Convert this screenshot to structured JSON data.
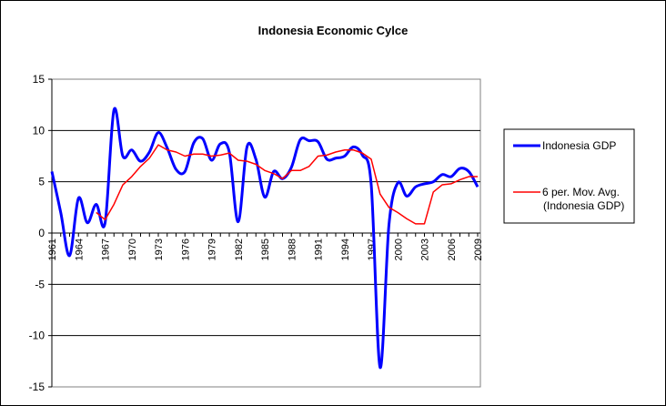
{
  "chart_data": {
    "type": "line",
    "title": "Indonesia Economic Cylce",
    "xlabel": "",
    "ylabel": "",
    "ylim": [
      -15,
      15
    ],
    "yticks": [
      15,
      10,
      5,
      0,
      -5,
      -10,
      -15
    ],
    "x": [
      1961,
      1962,
      1963,
      1964,
      1965,
      1966,
      1967,
      1968,
      1969,
      1970,
      1971,
      1972,
      1973,
      1974,
      1975,
      1976,
      1977,
      1978,
      1979,
      1980,
      1981,
      1982,
      1983,
      1984,
      1985,
      1986,
      1987,
      1988,
      1989,
      1990,
      1991,
      1992,
      1993,
      1994,
      1995,
      1996,
      1997,
      1998,
      1999,
      2000,
      2001,
      2002,
      2003,
      2004,
      2005,
      2006,
      2007,
      2008,
      2009
    ],
    "xtick_labels": [
      "1961",
      "1964",
      "1967",
      "1970",
      "1973",
      "1976",
      "1979",
      "1982",
      "1985",
      "1988",
      "1991",
      "1994",
      "1997",
      "2000",
      "2003",
      "2006",
      "2009"
    ],
    "grid": true,
    "legend_placement": "right",
    "series": [
      {
        "name": "Indonesia GDP",
        "color": "#0000FF",
        "smooth": true,
        "values": [
          6.0,
          2.0,
          -2.2,
          3.4,
          1.0,
          2.8,
          1.0,
          12.0,
          7.5,
          8.1,
          7.0,
          7.9,
          9.8,
          8.3,
          6.2,
          6.0,
          8.8,
          9.2,
          7.1,
          8.7,
          7.9,
          1.1,
          8.4,
          7.2,
          3.5,
          6.0,
          5.3,
          6.4,
          9.1,
          9.0,
          8.9,
          7.2,
          7.3,
          7.5,
          8.4,
          7.6,
          4.7,
          -13.1,
          0.8,
          4.9,
          3.6,
          4.5,
          4.8,
          5.0,
          5.7,
          5.5,
          6.3,
          6.0,
          4.5
        ]
      },
      {
        "name": "6 per. Mov. Avg. (Indonesia GDP)",
        "color": "#FF0000",
        "smooth": false,
        "values": [
          null,
          null,
          null,
          null,
          null,
          2.0,
          1.3,
          2.8,
          4.7,
          5.5,
          6.5,
          7.3,
          8.6,
          8.1,
          7.9,
          7.5,
          7.7,
          7.7,
          7.5,
          7.6,
          7.8,
          7.1,
          7.0,
          6.7,
          6.1,
          5.8,
          5.3,
          6.1,
          6.1,
          6.5,
          7.5,
          7.6,
          7.9,
          8.1,
          8.1,
          7.8,
          7.2,
          3.8,
          2.5,
          2.0,
          1.4,
          0.9,
          0.9,
          4.0,
          4.7,
          4.8,
          5.2,
          5.5,
          5.5
        ]
      }
    ],
    "legend": [
      "Indonesia GDP",
      "6 per. Mov. Avg.",
      "(Indonesia GDP)"
    ]
  }
}
